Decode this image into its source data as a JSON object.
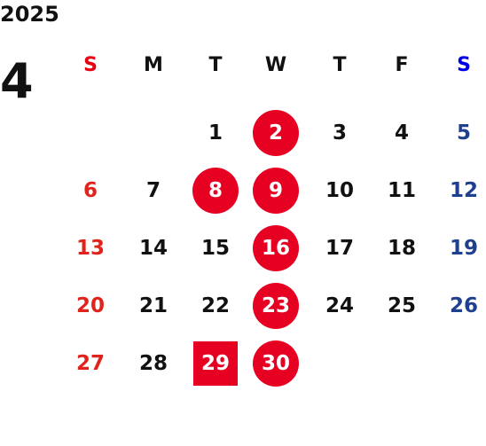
{
  "calendar": {
    "year": "2025",
    "month": "4",
    "weekdays": [
      {
        "label": "S",
        "color": "#e60012"
      },
      {
        "label": "M",
        "color": "#111111"
      },
      {
        "label": "T",
        "color": "#111111"
      },
      {
        "label": "W",
        "color": "#111111"
      },
      {
        "label": "T",
        "color": "#111111"
      },
      {
        "label": "F",
        "color": "#111111"
      },
      {
        "label": "S",
        "color": "#0000e6"
      }
    ],
    "colors": {
      "weekday_text": "#111111",
      "sunday_text": "#e0231b",
      "saturday_text": "#1f3f8f",
      "highlight_bg": "#e60022",
      "highlight_text": "#ffffff"
    },
    "first_weekday_index": 2,
    "days_in_month": 30,
    "highlighted_days": [
      {
        "day": 2,
        "shape": "circle"
      },
      {
        "day": 8,
        "shape": "circle"
      },
      {
        "day": 9,
        "shape": "circle"
      },
      {
        "day": 16,
        "shape": "circle"
      },
      {
        "day": 23,
        "shape": "circle"
      },
      {
        "day": 29,
        "shape": "square"
      },
      {
        "day": 30,
        "shape": "circle"
      }
    ]
  }
}
